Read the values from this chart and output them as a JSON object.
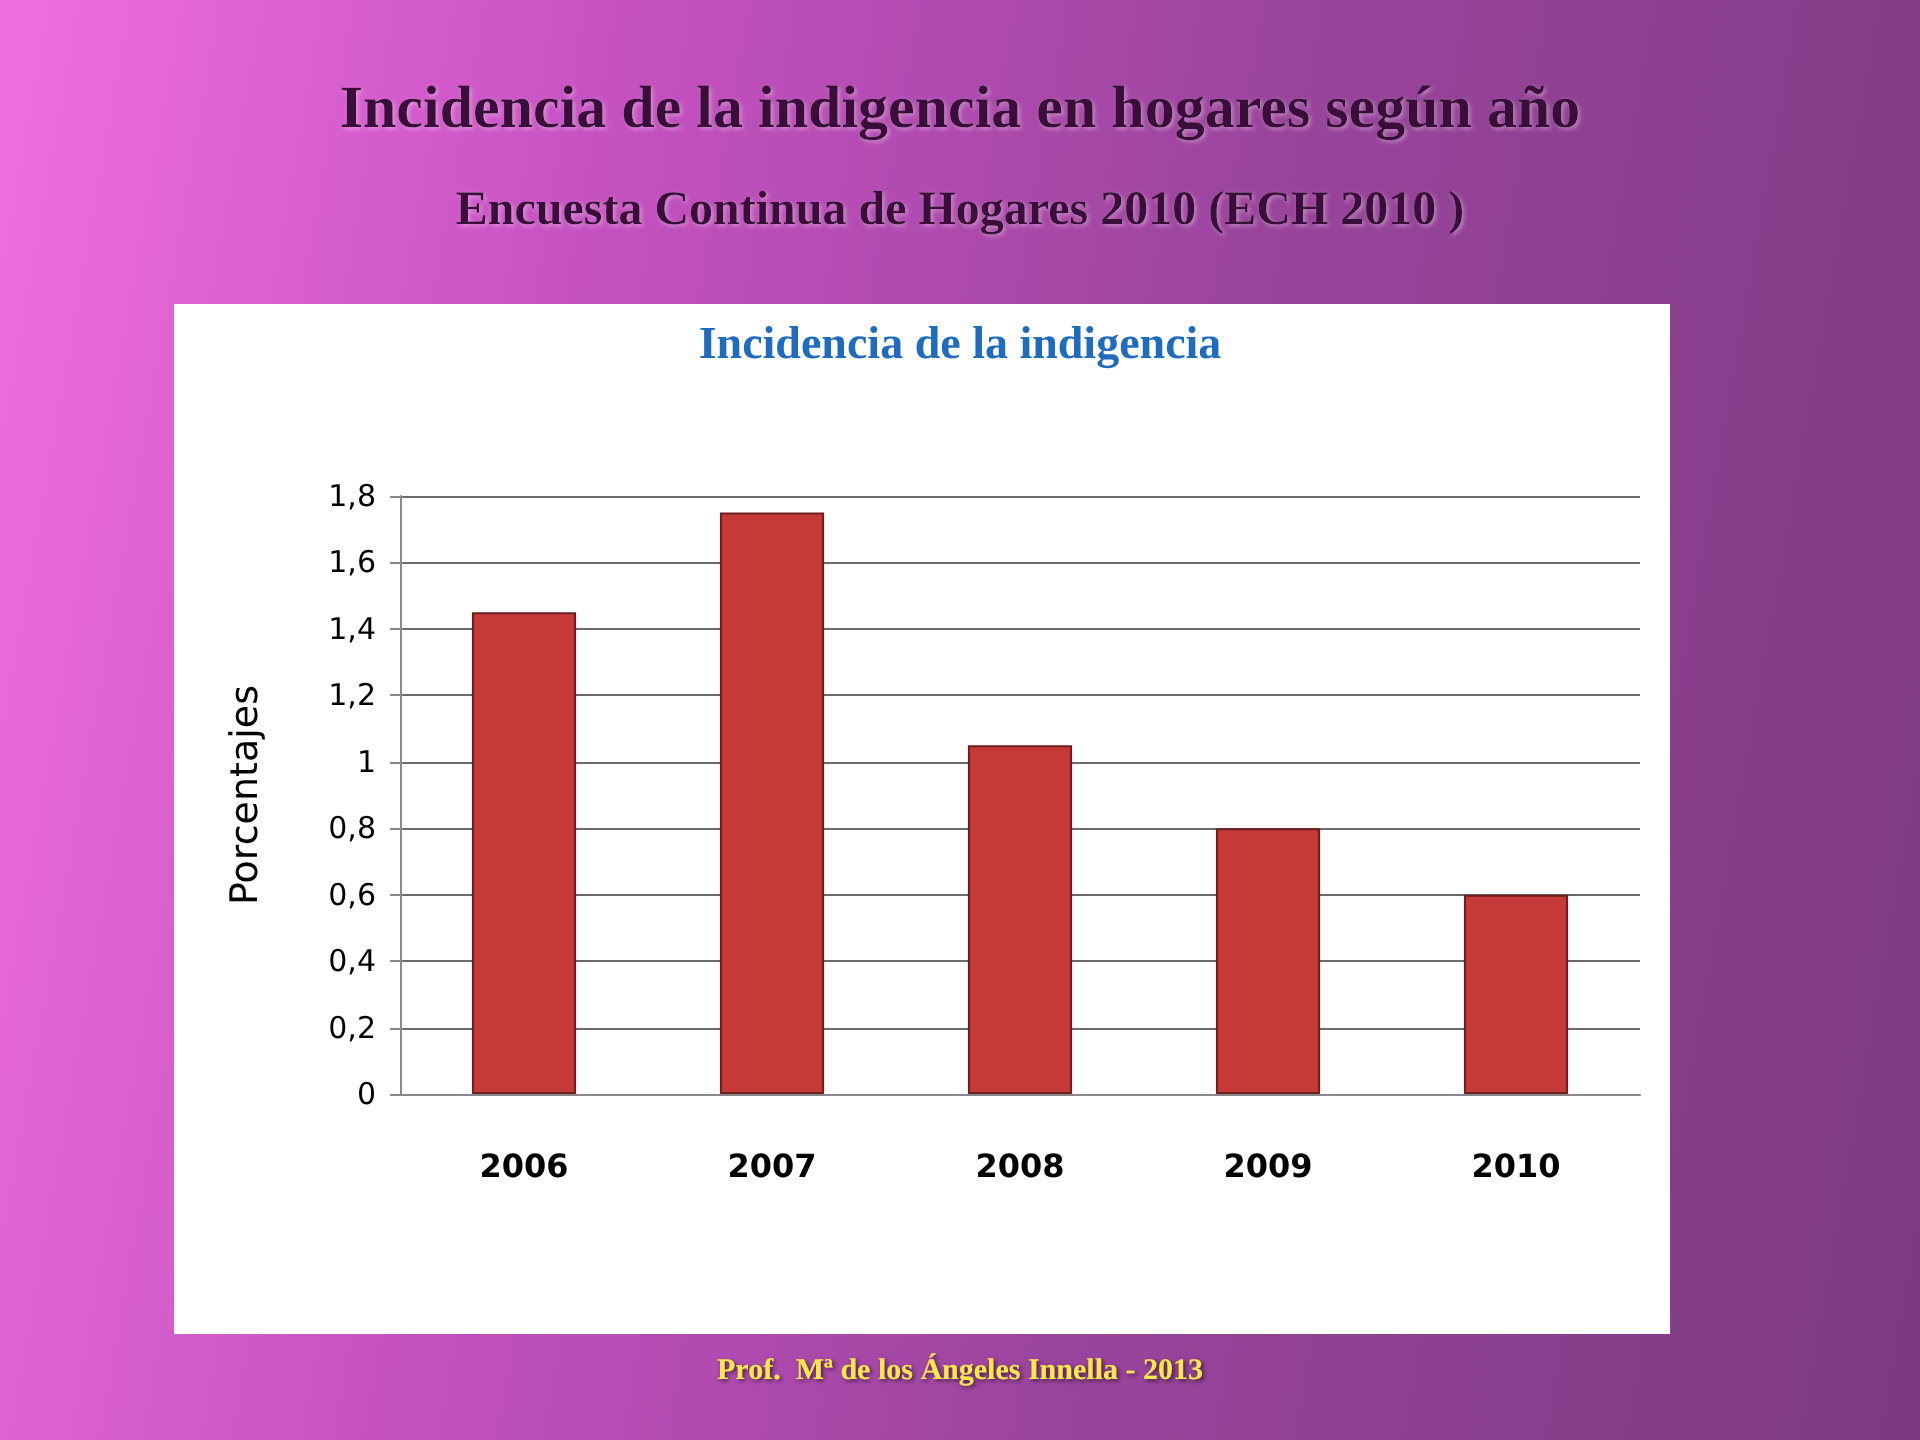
{
  "chart_data": {
    "type": "bar",
    "title": "Incidencia de la indigencia en hogares según año",
    "subtitle": "Encuesta Continua de Hogares 2010 (ECH 2010 )",
    "annotations": [
      "Incidencia de la indigencia",
      "Prof.  Mª de los Ángeles Innella - 2013"
    ],
    "ylabel": "Porcentajes",
    "categories": [
      "2006",
      "2007",
      "2008",
      "2009",
      "2010"
    ],
    "values": [
      1.45,
      1.75,
      1.05,
      0.8,
      0.6
    ],
    "color": "#c53a37",
    "ylim": [
      0,
      1.8
    ],
    "yticks": [
      0,
      {
        "value": 0.2,
        "label": "0,2"
      },
      {
        "value": 0.4,
        "label": "0,4"
      },
      {
        "value": 0.6,
        "label": "0,6"
      },
      {
        "value": 0.8,
        "label": "0,8"
      },
      1,
      {
        "value": 1.2,
        "label": "1,2"
      },
      {
        "value": 1.4,
        "label": "1,4"
      },
      {
        "value": 1.6,
        "label": "1,6"
      },
      {
        "value": 1.8,
        "label": "1,8"
      }
    ],
    "grid": "y"
  }
}
